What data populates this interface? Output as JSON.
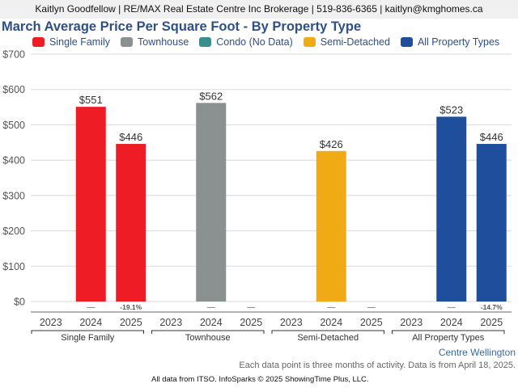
{
  "header": {
    "contact": "Kaitlyn Goodfellow | RE/MAX Real Estate Centre Inc Brokerage | 519-836-6365 | kaitlyn@kmghomes.ca"
  },
  "footer": {
    "region": "Centre Wellington",
    "note": "Each data point is three months of activity. Data is from April 18, 2025.",
    "credit": "All data from ITSO. InfoSparks © 2025 ShowingTime Plus, LLC."
  },
  "chart_data": {
    "type": "bar",
    "title": "March Average Price Per Square Foot - By Property Type",
    "xlabel": "",
    "ylabel": "",
    "ylim": [
      0,
      700
    ],
    "yticks": [
      0,
      100,
      200,
      300,
      400,
      500,
      600,
      700
    ],
    "ytick_labels": [
      "$0",
      "$100",
      "$200",
      "$300",
      "$400",
      "$500",
      "$600",
      "$700"
    ],
    "grid": true,
    "legend_position": "top",
    "legend": [
      {
        "name": "Single Family",
        "color": "#ee1c25"
      },
      {
        "name": "Townhouse",
        "color": "#8a9190"
      },
      {
        "name": "Condo (No Data)",
        "color": "#3a8f8c"
      },
      {
        "name": "Semi-Detached",
        "color": "#efaa15"
      },
      {
        "name": "All Property Types",
        "color": "#1f4e9c"
      }
    ],
    "groups": [
      {
        "name": "Single Family",
        "color": "#ee1c25",
        "categories": [
          "2023",
          "2024",
          "2025"
        ],
        "values": [
          null,
          551,
          446
        ],
        "value_labels": [
          "",
          "$551",
          "$446"
        ],
        "changes": [
          "",
          "—",
          "-19.1%"
        ]
      },
      {
        "name": "Townhouse",
        "color": "#8a9190",
        "categories": [
          "2023",
          "2024",
          "2025"
        ],
        "values": [
          null,
          562,
          null
        ],
        "value_labels": [
          "",
          "$562",
          ""
        ],
        "changes": [
          "",
          "—",
          "—"
        ]
      },
      {
        "name": "Semi-Detached",
        "color": "#efaa15",
        "categories": [
          "2023",
          "2024",
          "2025"
        ],
        "values": [
          null,
          426,
          null
        ],
        "value_labels": [
          "",
          "$426",
          ""
        ],
        "changes": [
          "",
          "—",
          "—"
        ]
      },
      {
        "name": "All Property Types",
        "color": "#1f4e9c",
        "categories": [
          "2023",
          "2024",
          "2025"
        ],
        "values": [
          null,
          523,
          446
        ],
        "value_labels": [
          "",
          "$523",
          "$446"
        ],
        "changes": [
          "",
          "—",
          "-14.7%"
        ]
      }
    ]
  }
}
